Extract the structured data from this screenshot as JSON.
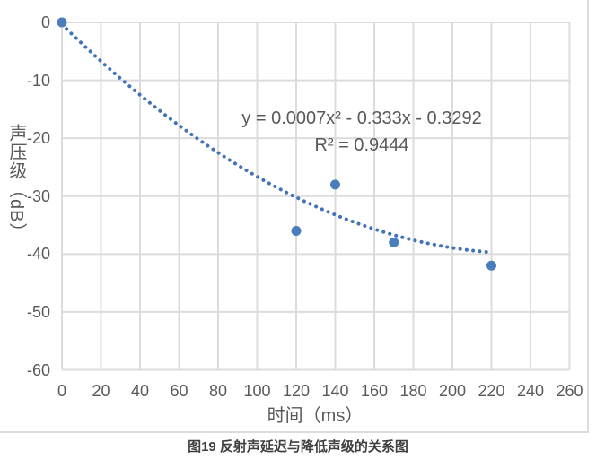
{
  "caption": "图19 反射声延迟与降低声级的关系图",
  "chart_data": {
    "type": "scatter",
    "title": "",
    "x_axis_title": "时间（ms）",
    "y_axis_title": "声压级（dB）",
    "points": [
      {
        "x": 0,
        "y": 0
      },
      {
        "x": 120,
        "y": -36
      },
      {
        "x": 140,
        "y": -28
      },
      {
        "x": 170,
        "y": -38
      },
      {
        "x": 220,
        "y": -42
      }
    ],
    "trendline": {
      "kind": "polynomial-order2-dotted",
      "a": 0.0007,
      "b": -0.333,
      "c": -0.3292,
      "x_start": 0,
      "x_end": 220,
      "equation_label": "y = 0.0007x² - 0.333x - 0.3292",
      "r_squared_label": "R² = 0.9444"
    },
    "x_ticks": [
      0,
      20,
      40,
      60,
      80,
      100,
      120,
      140,
      160,
      180,
      200,
      220,
      240,
      260
    ],
    "y_ticks": [
      0,
      -10,
      -20,
      -30,
      -40,
      -50,
      -60
    ],
    "xlim": [
      0,
      260
    ],
    "ylim": [
      -60,
      0
    ],
    "grid": true,
    "legend": "none",
    "colors": {
      "marker": "#4a7dbb",
      "trendline": "#4272b8",
      "gridline": "#dcdcdc",
      "axis_text": "#595959",
      "caption_text": "#3f3f3f",
      "background": "#ffffff"
    }
  }
}
